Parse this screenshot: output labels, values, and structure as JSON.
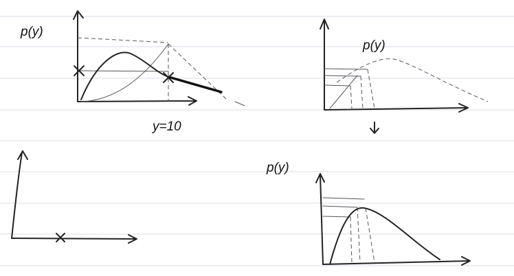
{
  "labels": {
    "top_left_axis": "p(y)",
    "top_left_marker": "y=10",
    "top_right_curve": "p(y)",
    "bottom_right_axis": "p(y)"
  }
}
